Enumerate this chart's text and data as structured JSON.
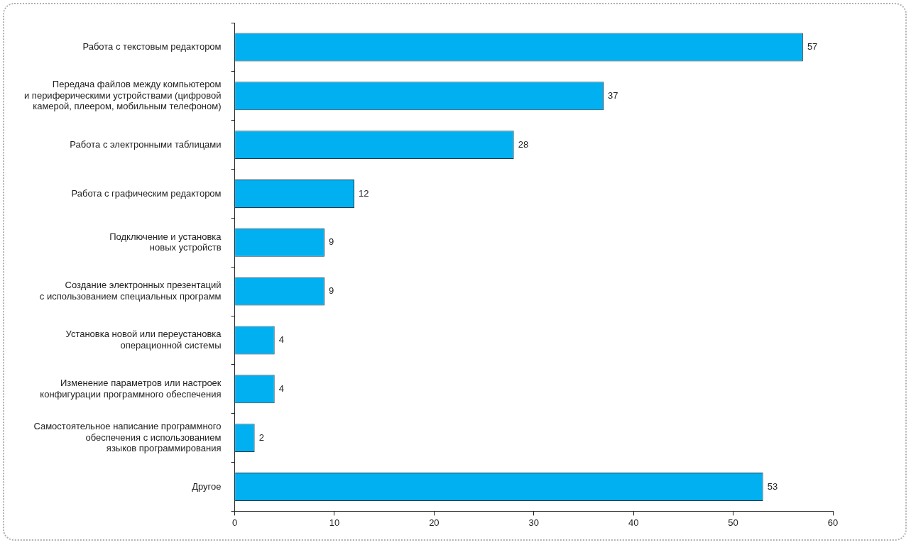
{
  "chart_data": {
    "type": "bar",
    "orientation": "horizontal",
    "categories": [
      "Работа с текстовым редактором",
      "Передача файлов между компьютером\nи периферическими устройствами (цифровой\nкамерой, плеером, мобильным телефоном)",
      "Работа с электронными таблицами",
      "Работа с графическим редактором",
      "Подключение и установка\nновых устройств",
      "Создание электронных презентаций\nс использованием специальных программ",
      "Установка новой или переустановка\nоперационной системы",
      "Изменение параметров или настроек\nконфигурации программного обеспечения",
      "Самостоятельное написание программного\nобеспечения с использованием\nязыков программирования",
      "Другое"
    ],
    "values": [
      57,
      37,
      28,
      12,
      9,
      9,
      4,
      4,
      2,
      53
    ],
    "color": "#00b0f0",
    "xlim": [
      0,
      60
    ],
    "xticks": [
      0,
      10,
      20,
      30,
      40,
      50,
      60
    ],
    "grid": false,
    "legend": false,
    "data_labels": true
  }
}
